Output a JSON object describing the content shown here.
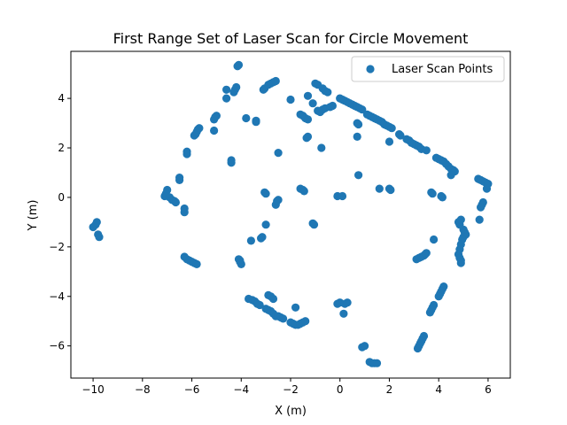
{
  "chart_data": {
    "type": "scatter",
    "title": "First Range Set of Laser Scan for Circle Movement",
    "xlabel": "X (m)",
    "ylabel": "Y (m)",
    "xlim": [
      -10.9,
      6.9
    ],
    "ylim": [
      -7.3,
      5.9
    ],
    "xticks": [
      -10,
      -8,
      -6,
      -4,
      -2,
      0,
      2,
      4,
      6
    ],
    "yticks": [
      -6,
      -4,
      -2,
      0,
      2,
      4
    ],
    "xtick_labels": [
      "−10",
      "−8",
      "−6",
      "−4",
      "−2",
      "0",
      "2",
      "4",
      "6"
    ],
    "ytick_labels": [
      "−6",
      "−4",
      "−2",
      "0",
      "2",
      "4"
    ],
    "grid": false,
    "legend": {
      "position": "top-right"
    },
    "series": [
      {
        "name": "Laser Scan Points",
        "color": "#1f77b4",
        "marker": "circle",
        "points": [
          [
            -10.0,
            -1.2
          ],
          [
            -9.9,
            -1.1
          ],
          [
            -9.85,
            -1.0
          ],
          [
            -9.8,
            -1.5
          ],
          [
            -9.75,
            -1.6
          ],
          [
            -7.0,
            0.3
          ],
          [
            -7.05,
            0.15
          ],
          [
            -7.1,
            0.05
          ],
          [
            -6.9,
            0.0
          ],
          [
            -6.8,
            -0.1
          ],
          [
            -6.7,
            -0.15
          ],
          [
            -6.65,
            -0.2
          ],
          [
            -6.3,
            -0.45
          ],
          [
            -6.3,
            -0.6
          ],
          [
            -6.5,
            0.7
          ],
          [
            -6.5,
            0.8
          ],
          [
            -6.3,
            -2.4
          ],
          [
            -6.2,
            -2.5
          ],
          [
            -6.1,
            -2.55
          ],
          [
            -6.0,
            -2.6
          ],
          [
            -5.9,
            -2.65
          ],
          [
            -5.8,
            -2.7
          ],
          [
            -6.2,
            1.75
          ],
          [
            -6.2,
            1.85
          ],
          [
            -5.9,
            2.5
          ],
          [
            -5.85,
            2.55
          ],
          [
            -5.8,
            2.65
          ],
          [
            -5.75,
            2.75
          ],
          [
            -5.7,
            2.8
          ],
          [
            -5.1,
            2.7
          ],
          [
            -5.1,
            3.15
          ],
          [
            -5.05,
            3.25
          ],
          [
            -5.0,
            3.3
          ],
          [
            -4.6,
            4.0
          ],
          [
            -4.6,
            4.35
          ],
          [
            -4.3,
            4.25
          ],
          [
            -4.25,
            4.35
          ],
          [
            -4.2,
            4.45
          ],
          [
            -4.15,
            5.3
          ],
          [
            -4.1,
            5.35
          ],
          [
            -4.4,
            1.4
          ],
          [
            -4.4,
            1.5
          ],
          [
            -3.8,
            3.2
          ],
          [
            -3.4,
            3.05
          ],
          [
            -3.4,
            3.1
          ],
          [
            -4.1,
            -2.5
          ],
          [
            -4.05,
            -2.6
          ],
          [
            -4.0,
            -2.7
          ],
          [
            -4.05,
            -2.55
          ],
          [
            -3.7,
            -4.1
          ],
          [
            -3.55,
            -4.15
          ],
          [
            -3.45,
            -4.2
          ],
          [
            -3.35,
            -4.3
          ],
          [
            -3.25,
            -4.35
          ],
          [
            -3.0,
            -4.5
          ],
          [
            -2.9,
            -4.55
          ],
          [
            -2.8,
            -4.6
          ],
          [
            -2.7,
            -4.7
          ],
          [
            -2.6,
            -4.8
          ],
          [
            -2.5,
            -4.8
          ],
          [
            -2.4,
            -4.85
          ],
          [
            -2.3,
            -4.9
          ],
          [
            -2.0,
            -5.05
          ],
          [
            -1.9,
            -5.1
          ],
          [
            -1.8,
            -5.15
          ],
          [
            -1.7,
            -5.15
          ],
          [
            -1.6,
            -5.1
          ],
          [
            -1.5,
            -5.05
          ],
          [
            -1.4,
            -5.0
          ],
          [
            -2.9,
            -3.95
          ],
          [
            -2.8,
            -4.0
          ],
          [
            -2.7,
            -4.1
          ],
          [
            -1.8,
            -4.45
          ],
          [
            -3.6,
            -1.75
          ],
          [
            -3.2,
            -1.65
          ],
          [
            -3.15,
            -1.6
          ],
          [
            -3.0,
            -1.1
          ],
          [
            -3.05,
            0.2
          ],
          [
            -3.0,
            0.15
          ],
          [
            -2.6,
            -0.3
          ],
          [
            -2.55,
            -0.15
          ],
          [
            -2.5,
            -0.1
          ],
          [
            -3.1,
            4.35
          ],
          [
            -3.05,
            4.4
          ],
          [
            -2.9,
            4.55
          ],
          [
            -2.8,
            4.6
          ],
          [
            -2.7,
            4.65
          ],
          [
            -2.6,
            4.7
          ],
          [
            -2.5,
            1.8
          ],
          [
            -2.0,
            3.95
          ],
          [
            -1.6,
            3.35
          ],
          [
            -1.5,
            3.3
          ],
          [
            -1.4,
            3.2
          ],
          [
            -1.3,
            3.15
          ],
          [
            -1.35,
            2.4
          ],
          [
            -1.3,
            2.45
          ],
          [
            -1.3,
            4.1
          ],
          [
            -1.1,
            3.8
          ],
          [
            -1.6,
            0.35
          ],
          [
            -1.5,
            0.3
          ],
          [
            -1.45,
            0.25
          ],
          [
            -1.1,
            -1.05
          ],
          [
            -1.05,
            -1.1
          ],
          [
            -1.0,
            4.6
          ],
          [
            -0.9,
            4.55
          ],
          [
            -0.7,
            4.4
          ],
          [
            -0.6,
            4.3
          ],
          [
            -0.5,
            4.25
          ],
          [
            -0.9,
            3.5
          ],
          [
            -0.8,
            3.45
          ],
          [
            -0.7,
            3.55
          ],
          [
            -0.6,
            3.6
          ],
          [
            -0.4,
            3.65
          ],
          [
            -0.3,
            3.7
          ],
          [
            -0.75,
            2.0
          ],
          [
            -0.1,
            0.05
          ],
          [
            0.1,
            0.05
          ],
          [
            0.0,
            4.0
          ],
          [
            0.1,
            3.95
          ],
          [
            0.2,
            3.9
          ],
          [
            0.3,
            3.85
          ],
          [
            0.4,
            3.8
          ],
          [
            0.5,
            3.75
          ],
          [
            0.6,
            3.7
          ],
          [
            0.7,
            3.65
          ],
          [
            0.8,
            3.6
          ],
          [
            0.9,
            3.55
          ],
          [
            1.1,
            3.35
          ],
          [
            1.2,
            3.3
          ],
          [
            1.3,
            3.25
          ],
          [
            1.4,
            3.2
          ],
          [
            1.5,
            3.15
          ],
          [
            1.6,
            3.1
          ],
          [
            1.7,
            3.05
          ],
          [
            1.8,
            2.95
          ],
          [
            1.9,
            2.9
          ],
          [
            2.0,
            2.85
          ],
          [
            2.1,
            2.8
          ],
          [
            0.7,
            3.0
          ],
          [
            0.75,
            2.95
          ],
          [
            0.7,
            2.45
          ],
          [
            0.75,
            0.9
          ],
          [
            2.0,
            2.25
          ],
          [
            1.6,
            0.35
          ],
          [
            2.0,
            0.35
          ],
          [
            2.05,
            0.3
          ],
          [
            2.4,
            2.55
          ],
          [
            2.45,
            2.5
          ],
          [
            2.7,
            2.35
          ],
          [
            2.8,
            2.3
          ],
          [
            2.9,
            2.2
          ],
          [
            3.0,
            2.15
          ],
          [
            3.1,
            2.1
          ],
          [
            3.2,
            2.05
          ],
          [
            3.3,
            1.95
          ],
          [
            3.5,
            1.9
          ],
          [
            3.9,
            1.6
          ],
          [
            4.0,
            1.55
          ],
          [
            4.1,
            1.5
          ],
          [
            4.2,
            1.45
          ],
          [
            4.3,
            1.35
          ],
          [
            4.4,
            1.25
          ],
          [
            4.5,
            1.15
          ],
          [
            4.6,
            1.1
          ],
          [
            4.65,
            1.05
          ],
          [
            4.5,
            0.9
          ],
          [
            3.7,
            0.2
          ],
          [
            3.75,
            0.15
          ],
          [
            4.1,
            0.05
          ],
          [
            4.15,
            0.0
          ],
          [
            3.8,
            -1.7
          ],
          [
            5.6,
            0.75
          ],
          [
            5.7,
            0.7
          ],
          [
            5.8,
            0.65
          ],
          [
            5.9,
            0.6
          ],
          [
            6.0,
            0.55
          ],
          [
            5.95,
            0.35
          ],
          [
            5.8,
            -0.2
          ],
          [
            5.75,
            -0.3
          ],
          [
            5.7,
            -0.4
          ],
          [
            5.65,
            -0.9
          ],
          [
            4.8,
            -1.0
          ],
          [
            4.85,
            -1.1
          ],
          [
            4.9,
            -0.9
          ],
          [
            5.0,
            -1.3
          ],
          [
            5.05,
            -1.4
          ],
          [
            5.1,
            -1.5
          ],
          [
            5.0,
            -1.6
          ],
          [
            4.95,
            -1.7
          ],
          [
            4.9,
            -1.9
          ],
          [
            4.85,
            -2.1
          ],
          [
            4.8,
            -2.3
          ],
          [
            4.85,
            -2.45
          ],
          [
            4.9,
            -2.55
          ],
          [
            4.9,
            -2.65
          ],
          [
            3.5,
            -2.25
          ],
          [
            3.45,
            -2.3
          ],
          [
            3.4,
            -2.35
          ],
          [
            3.3,
            -2.4
          ],
          [
            3.2,
            -2.45
          ],
          [
            3.1,
            -2.5
          ],
          [
            4.2,
            -3.6
          ],
          [
            4.15,
            -3.7
          ],
          [
            4.1,
            -3.8
          ],
          [
            4.05,
            -3.9
          ],
          [
            4.0,
            -4.0
          ],
          [
            3.8,
            -4.35
          ],
          [
            3.75,
            -4.45
          ],
          [
            3.7,
            -4.55
          ],
          [
            3.65,
            -4.65
          ],
          [
            3.4,
            -5.6
          ],
          [
            3.35,
            -5.7
          ],
          [
            3.3,
            -5.8
          ],
          [
            3.25,
            -5.9
          ],
          [
            3.2,
            -6.0
          ],
          [
            3.15,
            -6.1
          ],
          [
            -0.1,
            -4.3
          ],
          [
            0.0,
            -4.25
          ],
          [
            0.2,
            -4.3
          ],
          [
            0.3,
            -4.25
          ],
          [
            0.15,
            -4.7
          ],
          [
            0.9,
            -6.05
          ],
          [
            1.0,
            -6.0
          ],
          [
            1.2,
            -6.65
          ],
          [
            1.3,
            -6.7
          ],
          [
            1.4,
            -6.7
          ],
          [
            1.5,
            -6.7
          ]
        ]
      }
    ]
  }
}
